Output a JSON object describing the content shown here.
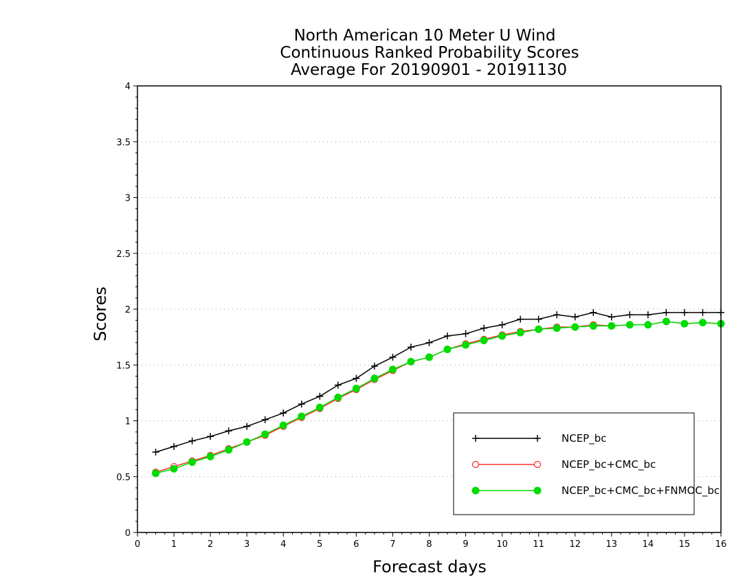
{
  "chart_data": {
    "type": "line",
    "title": [
      "North American 10 Meter U Wind",
      "Continuous Ranked Probability Scores",
      "Average For 20190901 - 20191130"
    ],
    "xlabel": "Forecast days",
    "ylabel": "Scores",
    "xlim": [
      0,
      16
    ],
    "ylim": [
      0,
      4
    ],
    "xticks": [
      0,
      1,
      2,
      3,
      4,
      5,
      6,
      7,
      8,
      9,
      10,
      11,
      12,
      13,
      14,
      15,
      16
    ],
    "yticks": [
      0,
      0.5,
      1,
      1.5,
      2,
      2.5,
      3,
      3.5,
      4
    ],
    "grid": "horizontal dotted",
    "legend_position": "lower-right",
    "x": [
      0.5,
      1,
      1.5,
      2,
      2.5,
      3,
      3.5,
      4,
      4.5,
      5,
      5.5,
      6,
      6.5,
      7,
      7.5,
      8,
      8.5,
      9,
      9.5,
      10,
      10.5,
      11,
      11.5,
      12,
      12.5,
      13,
      13.5,
      14,
      14.5,
      15,
      15.5,
      16
    ],
    "series": [
      {
        "name": "NCEP_bc",
        "color": "#000000",
        "marker": "plus",
        "values": [
          0.72,
          0.77,
          0.82,
          0.86,
          0.91,
          0.95,
          1.01,
          1.07,
          1.15,
          1.22,
          1.32,
          1.38,
          1.49,
          1.57,
          1.66,
          1.7,
          1.76,
          1.78,
          1.83,
          1.86,
          1.91,
          1.91,
          1.95,
          1.93,
          1.97,
          1.93,
          1.95,
          1.95,
          1.97,
          1.97,
          1.97,
          1.97
        ]
      },
      {
        "name": "NCEP_bc+CMC_bc",
        "color": "#ff3030",
        "marker": "open-circle",
        "values": [
          0.54,
          0.59,
          0.64,
          0.69,
          0.75,
          0.81,
          0.87,
          0.95,
          1.03,
          1.11,
          1.2,
          1.28,
          1.37,
          1.45,
          1.53,
          1.57,
          1.64,
          1.69,
          1.73,
          1.77,
          1.8,
          1.82,
          1.84,
          1.84,
          1.86,
          1.85,
          1.86,
          1.86,
          1.89,
          1.87,
          1.88,
          1.87
        ]
      },
      {
        "name": "NCEP_bc+CMC_bc+FNMOC_bc",
        "color": "#00dc00",
        "marker": "filled-circle",
        "values": [
          0.53,
          0.57,
          0.63,
          0.68,
          0.74,
          0.81,
          0.88,
          0.96,
          1.04,
          1.12,
          1.21,
          1.29,
          1.38,
          1.46,
          1.53,
          1.57,
          1.64,
          1.68,
          1.72,
          1.76,
          1.79,
          1.82,
          1.83,
          1.84,
          1.85,
          1.85,
          1.86,
          1.86,
          1.89,
          1.87,
          1.88,
          1.87
        ]
      }
    ]
  }
}
